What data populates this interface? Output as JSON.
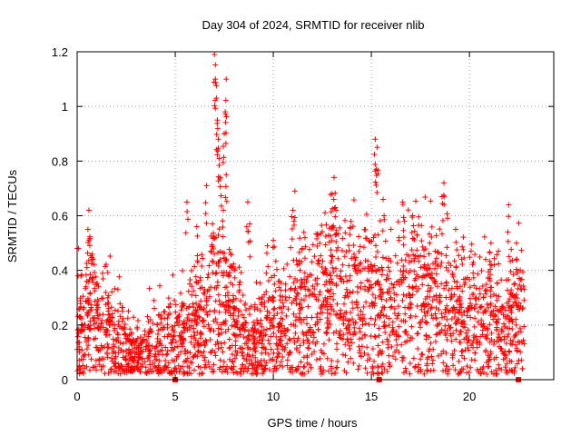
{
  "chart_data": {
    "type": "scatter",
    "title": "Day 304 of 2024, SRMTID for receiver nlib",
    "xlabel": "GPS time / hours",
    "ylabel": "SRMTID / TECUs",
    "xlim": [
      0,
      24.3
    ],
    "ylim": [
      0,
      1.2
    ],
    "xticks": [
      0,
      5,
      10,
      15,
      20
    ],
    "yticks": [
      0,
      0.2,
      0.4,
      0.6,
      0.8,
      1,
      1.2
    ],
    "ytick_labels": [
      "0",
      "0.2",
      "0.4",
      "0.6",
      "0.8",
      "1",
      "1.2"
    ],
    "grid": true,
    "marker": "+",
    "color": "#ff0000",
    "zero_markers": [
      5.0,
      15.4,
      22.5
    ],
    "series_envelope": [
      {
        "x": 0.0,
        "y": 0.21
      },
      {
        "x": 0.3,
        "y": 0.18
      },
      {
        "x": 0.6,
        "y": 0.24
      },
      {
        "x": 1.0,
        "y": 0.2
      },
      {
        "x": 1.5,
        "y": 0.19
      },
      {
        "x": 2.0,
        "y": 0.16
      },
      {
        "x": 2.5,
        "y": 0.1
      },
      {
        "x": 3.0,
        "y": 0.08
      },
      {
        "x": 3.5,
        "y": 0.09
      },
      {
        "x": 4.0,
        "y": 0.11
      },
      {
        "x": 4.5,
        "y": 0.12
      },
      {
        "x": 5.0,
        "y": 0.13
      },
      {
        "x": 5.5,
        "y": 0.14
      },
      {
        "x": 6.0,
        "y": 0.15
      },
      {
        "x": 6.5,
        "y": 0.2
      },
      {
        "x": 7.0,
        "y": 0.3
      },
      {
        "x": 7.5,
        "y": 0.25
      },
      {
        "x": 8.0,
        "y": 0.2
      },
      {
        "x": 8.5,
        "y": 0.14
      },
      {
        "x": 9.0,
        "y": 0.12
      },
      {
        "x": 9.5,
        "y": 0.14
      },
      {
        "x": 10.0,
        "y": 0.17
      },
      {
        "x": 10.5,
        "y": 0.19
      },
      {
        "x": 11.0,
        "y": 0.2
      },
      {
        "x": 11.5,
        "y": 0.22
      },
      {
        "x": 12.0,
        "y": 0.25
      },
      {
        "x": 12.5,
        "y": 0.27
      },
      {
        "x": 13.0,
        "y": 0.3
      },
      {
        "x": 13.5,
        "y": 0.31
      },
      {
        "x": 14.0,
        "y": 0.3
      },
      {
        "x": 14.5,
        "y": 0.28
      },
      {
        "x": 15.0,
        "y": 0.27
      },
      {
        "x": 15.5,
        "y": 0.26
      },
      {
        "x": 16.0,
        "y": 0.22
      },
      {
        "x": 16.5,
        "y": 0.27
      },
      {
        "x": 17.0,
        "y": 0.3
      },
      {
        "x": 17.5,
        "y": 0.3
      },
      {
        "x": 18.0,
        "y": 0.29
      },
      {
        "x": 18.5,
        "y": 0.27
      },
      {
        "x": 19.0,
        "y": 0.25
      },
      {
        "x": 19.5,
        "y": 0.23
      },
      {
        "x": 20.0,
        "y": 0.23
      },
      {
        "x": 20.5,
        "y": 0.22
      },
      {
        "x": 21.0,
        "y": 0.2
      },
      {
        "x": 21.5,
        "y": 0.19
      },
      {
        "x": 22.0,
        "y": 0.22
      },
      {
        "x": 22.5,
        "y": 0.24
      },
      {
        "x": 22.8,
        "y": 0.22
      }
    ],
    "spikes": [
      {
        "x": 0.6,
        "y": 0.62
      },
      {
        "x": 0.55,
        "y": 0.55
      },
      {
        "x": 0.5,
        "y": 0.41
      },
      {
        "x": 5.6,
        "y": 0.65
      },
      {
        "x": 6.1,
        "y": 0.56
      },
      {
        "x": 6.6,
        "y": 0.71
      },
      {
        "x": 6.9,
        "y": 0.57
      },
      {
        "x": 7.0,
        "y": 1.19
      },
      {
        "x": 7.05,
        "y": 1.1
      },
      {
        "x": 7.1,
        "y": 1.03
      },
      {
        "x": 7.15,
        "y": 0.95
      },
      {
        "x": 7.2,
        "y": 0.88
      },
      {
        "x": 7.25,
        "y": 0.81
      },
      {
        "x": 7.3,
        "y": 0.74
      },
      {
        "x": 7.6,
        "y": 1.1
      },
      {
        "x": 7.55,
        "y": 0.98
      },
      {
        "x": 7.5,
        "y": 0.9
      },
      {
        "x": 7.6,
        "y": 0.75
      },
      {
        "x": 7.45,
        "y": 0.62
      },
      {
        "x": 8.7,
        "y": 0.65
      },
      {
        "x": 8.8,
        "y": 0.57
      },
      {
        "x": 9.7,
        "y": 0.49
      },
      {
        "x": 10.0,
        "y": 0.51
      },
      {
        "x": 11.1,
        "y": 0.69
      },
      {
        "x": 11.0,
        "y": 0.62
      },
      {
        "x": 12.3,
        "y": 0.53
      },
      {
        "x": 13.1,
        "y": 0.74
      },
      {
        "x": 13.0,
        "y": 0.68
      },
      {
        "x": 13.2,
        "y": 0.62
      },
      {
        "x": 15.2,
        "y": 0.88
      },
      {
        "x": 15.3,
        "y": 0.85
      },
      {
        "x": 15.25,
        "y": 0.77
      },
      {
        "x": 15.6,
        "y": 0.66
      },
      {
        "x": 16.6,
        "y": 0.65
      },
      {
        "x": 17.1,
        "y": 0.6
      },
      {
        "x": 18.7,
        "y": 0.72
      },
      {
        "x": 18.6,
        "y": 0.67
      },
      {
        "x": 19.3,
        "y": 0.55
      },
      {
        "x": 21.1,
        "y": 0.5
      },
      {
        "x": 22.0,
        "y": 0.64
      },
      {
        "x": 22.4,
        "y": 0.5
      }
    ],
    "point_count": 2600
  }
}
